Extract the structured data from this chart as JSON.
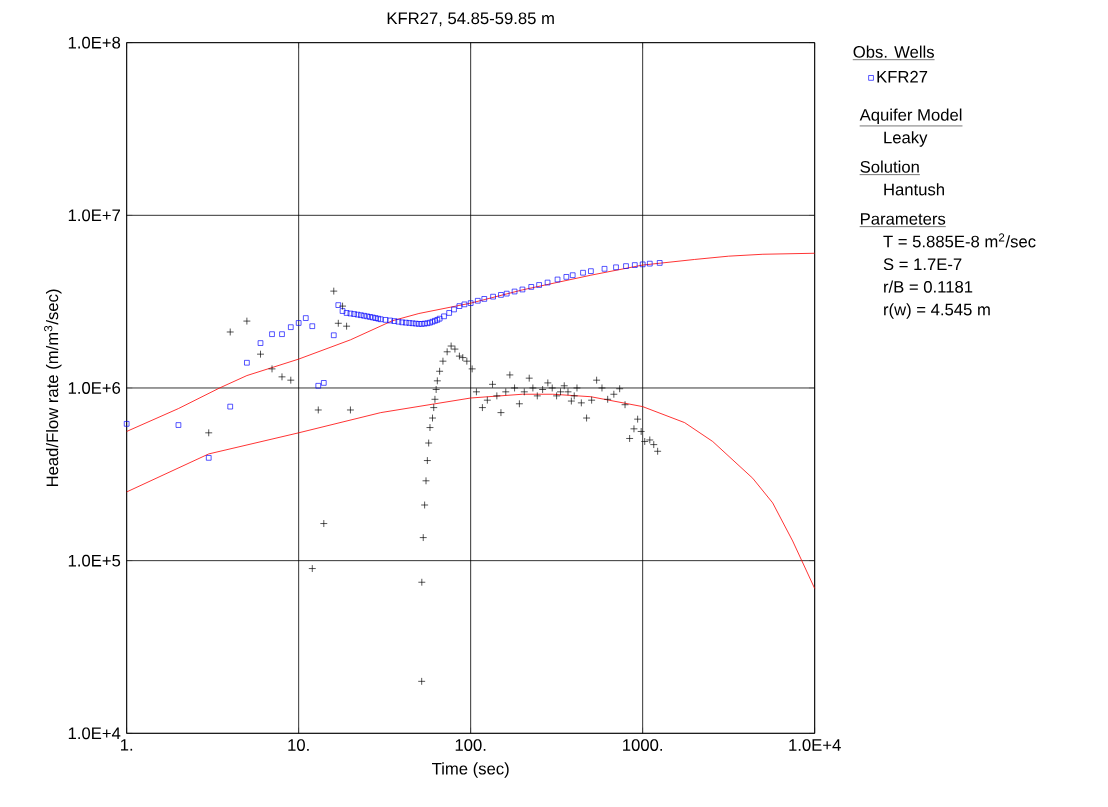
{
  "chart_data": {
    "type": "scatter",
    "title": "KFR27, 54.85-59.85 m",
    "xlabel": "Time (sec)",
    "ylabel": "Head/Flow rate (m/m$^{3}$/sec)",
    "log": "xy",
    "grid": true,
    "legend": "right",
    "legend_title": "Obs. Wells",
    "xlim": [
      1,
      10000
    ],
    "ylim": [
      10000,
      100000000
    ],
    "xticks": [
      {
        "value": 1,
        "label": "1."
      },
      {
        "value": 10,
        "label": "10."
      },
      {
        "value": 100,
        "label": "100."
      },
      {
        "value": 1000,
        "label": "1000."
      },
      {
        "value": 10000,
        "label": "1.0E+4"
      }
    ],
    "yticks": [
      {
        "value": 10000,
        "label": "1.0E+4"
      },
      {
        "value": 100000,
        "label": "1.0E+5"
      },
      {
        "value": 1000000,
        "label": "1.0E+6"
      },
      {
        "value": 10000000,
        "label": "1.0E+7"
      },
      {
        "value": 100000000,
        "label": "1.0E+8"
      }
    ],
    "series": [
      {
        "name": "KFR27",
        "marker": "square",
        "color": "#0000ff",
        "x": [
          1,
          2,
          3,
          4,
          5,
          6,
          7,
          8,
          9,
          10,
          11,
          12,
          13,
          14,
          16,
          17,
          18,
          19,
          20,
          21,
          22,
          23,
          24,
          25,
          26,
          27,
          28,
          29,
          30,
          32,
          34,
          36,
          38,
          40,
          42,
          44,
          46,
          48,
          50,
          52,
          54,
          56,
          58,
          60,
          62,
          64,
          66,
          70,
          75,
          80,
          86,
          92,
          100,
          110,
          120,
          135,
          150,
          162,
          180,
          200,
          225,
          250,
          280,
          320,
          360,
          392,
          450,
          500,
          600,
          700,
          800,
          900,
          1000,
          1100,
          1256
        ],
        "values": [
          620000,
          610000,
          394000,
          780000,
          1400000,
          1820000,
          2050000,
          2050000,
          2250000,
          2380000,
          2540000,
          2280000,
          1030000,
          1070000,
          2020000,
          3020000,
          2790000,
          2720000,
          2700000,
          2680000,
          2660000,
          2640000,
          2620000,
          2600000,
          2580000,
          2560000,
          2540000,
          2520000,
          2500000,
          2480000,
          2460000,
          2440000,
          2420000,
          2400000,
          2390000,
          2380000,
          2370000,
          2360000,
          2350000,
          2350000,
          2360000,
          2370000,
          2390000,
          2420000,
          2450000,
          2480000,
          2520000,
          2600000,
          2720000,
          2850000,
          2980000,
          3050000,
          3100000,
          3200000,
          3280000,
          3380000,
          3460000,
          3520000,
          3620000,
          3720000,
          3850000,
          3950000,
          4080000,
          4250000,
          4400000,
          4500000,
          4650000,
          4750000,
          4900000,
          5000000,
          5080000,
          5150000,
          5200000,
          5250000,
          5300000
        ]
      },
      {
        "marker": "cross",
        "color": "#000000",
        "x": [
          3,
          4,
          5,
          6,
          7,
          8,
          9,
          12,
          13,
          14,
          16,
          17,
          18,
          19,
          20,
          51.9,
          52,
          53,
          54,
          55,
          56,
          57,
          58,
          60,
          61,
          62,
          63,
          64,
          66,
          69,
          73,
          77,
          81,
          86,
          90,
          95,
          102,
          108,
          117,
          125,
          134,
          142,
          150,
          160,
          169,
          180,
          192,
          205,
          219,
          230,
          244,
          262,
          281,
          298,
          316,
          333,
          350,
          368,
          385,
          400,
          415,
          440,
          472,
          505,
          540,
          580,
          626,
          680,
          735,
          790,
          840,
          890,
          935,
          980,
          1028,
          1100,
          1160,
          1222
        ],
        "values": [
          550000,
          2110000,
          2440000,
          1570000,
          1290000,
          1160000,
          1110000,
          90000,
          746000,
          164000,
          3640000,
          2370000,
          2980000,
          2280000,
          746000,
          20000,
          75000,
          136000,
          210000,
          290000,
          380000,
          480000,
          590000,
          670000,
          770000,
          860000,
          980000,
          1100000,
          1250000,
          1430000,
          1620000,
          1750000,
          1680000,
          1530000,
          1500000,
          1430000,
          1290000,
          950000,
          770000,
          850000,
          1050000,
          900000,
          720000,
          950000,
          1190000,
          1000000,
          810000,
          950000,
          1140000,
          1000000,
          900000,
          980000,
          1070000,
          1000000,
          900000,
          950000,
          1030000,
          950000,
          840000,
          900000,
          1000000,
          820000,
          670000,
          850000,
          1110000,
          1000000,
          860000,
          920000,
          990000,
          800000,
          510000,
          580000,
          660000,
          560000,
          490000,
          500000,
          470000,
          430000
        ]
      },
      {
        "type": "line",
        "marker": "none",
        "color": "#ff0000",
        "x": [
          1,
          2,
          3.47,
          5,
          10,
          20,
          35,
          50,
          100,
          200,
          500,
          1000,
          2000,
          3162,
          5000,
          10000
        ],
        "values": [
          560000,
          760000,
          1000000,
          1180000,
          1470000,
          1900000,
          2450000,
          2700000,
          3100000,
          3700000,
          4500000,
          5150000,
          5550000,
          5800000,
          5950000,
          6030000
        ]
      },
      {
        "type": "line",
        "marker": "none",
        "color": "#ff0000",
        "x": [
          1,
          3,
          10,
          30,
          100,
          200,
          300,
          500,
          1000,
          1754,
          2553,
          4365,
          5700,
          7450,
          10000
        ],
        "values": [
          250000,
          415000,
          550000,
          720000,
          875000,
          920000,
          920000,
          890000,
          780000,
          630000,
          490000,
          300000,
          216000,
          130000,
          69000
        ]
      }
    ],
    "annotations": [
      "Aquifer Model",
      "Leaky",
      "Solution",
      "Hantush",
      "Parameters",
      "T = 5.885E-8 m$^{2}$/sec",
      "S = 1.7E-7",
      "r/B = 0.1181",
      "r(w) = 4.545 m"
    ]
  }
}
